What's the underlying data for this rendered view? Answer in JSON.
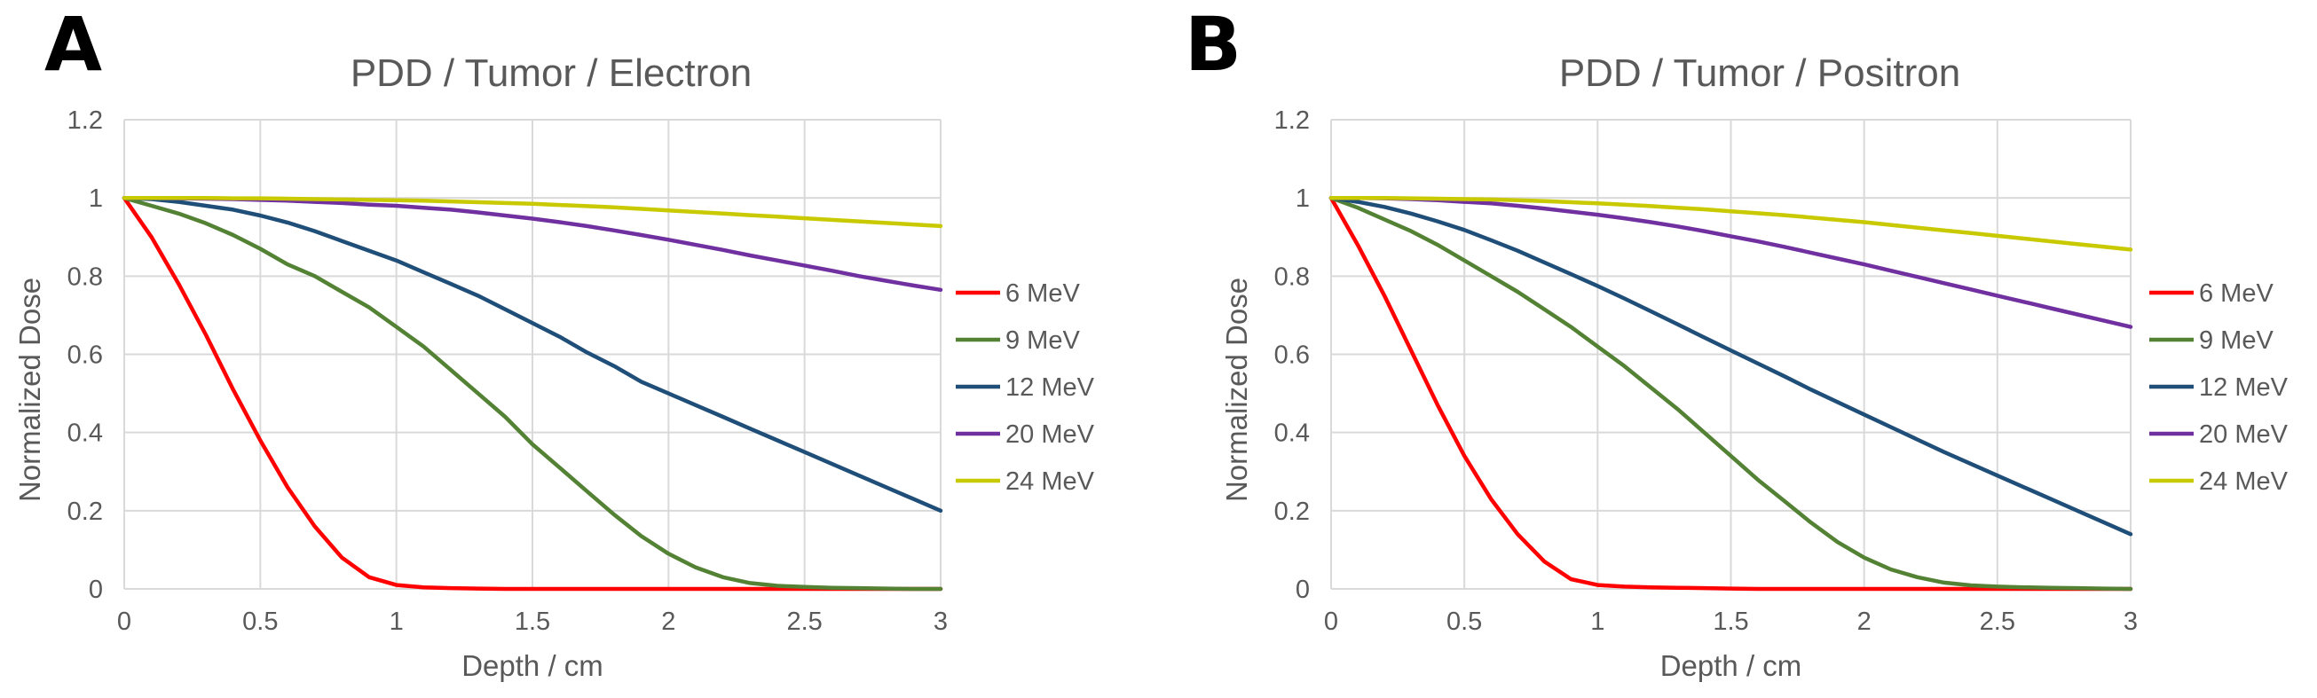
{
  "colors": {
    "6 MeV": "#ff0000",
    "9 MeV": "#548235",
    "12 MeV": "#1f4e79",
    "20 MeV": "#7030a0",
    "24 MeV": "#c9c900"
  },
  "chart_data": [
    {
      "panel_label": "A",
      "type": "line",
      "title": "PDD / Tumor / Electron",
      "xlabel": "Depth / cm",
      "ylabel": "Normalized Dose",
      "xlim": [
        0,
        3
      ],
      "ylim": [
        0,
        1.2
      ],
      "x_ticks": [
        "0",
        "0.5",
        "1",
        "1.5",
        "2",
        "2.5",
        "3"
      ],
      "y_ticks": [
        "0",
        "0.2",
        "0.4",
        "0.6",
        "0.8",
        "1",
        "1.2"
      ],
      "x": [
        0,
        0.1,
        0.2,
        0.3,
        0.4,
        0.5,
        0.6,
        0.7,
        0.8,
        0.9,
        1.0,
        1.1,
        1.2,
        1.3,
        1.4,
        1.5,
        1.6,
        1.7,
        1.8,
        1.9,
        2.0,
        2.1,
        2.2,
        2.3,
        2.4,
        2.5,
        2.6,
        2.7,
        2.8,
        2.9,
        3.0
      ],
      "series": [
        {
          "name": "6 MeV",
          "values": [
            1.0,
            0.9,
            0.78,
            0.65,
            0.51,
            0.38,
            0.26,
            0.16,
            0.08,
            0.03,
            0.01,
            0.004,
            0.002,
            0.001,
            0.0,
            0.0,
            0.0,
            0.0,
            0.0,
            0.0,
            0.0,
            0.0,
            0.0,
            0.0,
            0.0,
            0.0,
            0.0,
            0.0,
            0.0,
            0.0,
            0.0
          ]
        },
        {
          "name": "9 MeV",
          "values": [
            1.0,
            0.98,
            0.96,
            0.935,
            0.905,
            0.87,
            0.83,
            0.8,
            0.76,
            0.72,
            0.67,
            0.62,
            0.56,
            0.5,
            0.44,
            0.37,
            0.31,
            0.25,
            0.19,
            0.135,
            0.09,
            0.055,
            0.03,
            0.015,
            0.008,
            0.005,
            0.003,
            0.002,
            0.001,
            0.0,
            0.0
          ]
        },
        {
          "name": "12 MeV",
          "values": [
            1.0,
            0.997,
            0.99,
            0.98,
            0.97,
            0.955,
            0.937,
            0.915,
            0.89,
            0.865,
            0.84,
            0.81,
            0.78,
            0.75,
            0.715,
            0.68,
            0.645,
            0.605,
            0.57,
            0.53,
            0.5,
            0.47,
            0.44,
            0.41,
            0.38,
            0.35,
            0.32,
            0.29,
            0.26,
            0.23,
            0.2
          ]
        },
        {
          "name": "20 MeV",
          "values": [
            1.0,
            1.0,
            0.999,
            0.998,
            0.997,
            0.995,
            0.993,
            0.99,
            0.987,
            0.983,
            0.98,
            0.975,
            0.97,
            0.963,
            0.955,
            0.947,
            0.938,
            0.928,
            0.917,
            0.905,
            0.893,
            0.88,
            0.867,
            0.853,
            0.84,
            0.827,
            0.814,
            0.8,
            0.788,
            0.776,
            0.765
          ]
        },
        {
          "name": "24 MeV",
          "values": [
            1.0,
            1.0,
            1.0,
            1.0,
            0.999,
            0.999,
            0.998,
            0.997,
            0.996,
            0.995,
            0.994,
            0.993,
            0.991,
            0.989,
            0.987,
            0.985,
            0.982,
            0.979,
            0.976,
            0.972,
            0.968,
            0.964,
            0.96,
            0.956,
            0.952,
            0.948,
            0.944,
            0.94,
            0.936,
            0.932,
            0.928
          ]
        }
      ],
      "legend": [
        "6 MeV",
        "9 MeV",
        "12 MeV",
        "20 MeV",
        "24 MeV"
      ],
      "legend_position": "right"
    },
    {
      "panel_label": "B",
      "type": "line",
      "title": "PDD / Tumor / Positron",
      "xlabel": "Depth / cm",
      "ylabel": "Normalized Dose",
      "xlim": [
        0,
        3
      ],
      "ylim": [
        0,
        1.2
      ],
      "x_ticks": [
        "0",
        "0.5",
        "1",
        "1.5",
        "2",
        "2.5",
        "3"
      ],
      "y_ticks": [
        "0",
        "0.2",
        "0.4",
        "0.6",
        "0.8",
        "1",
        "1.2"
      ],
      "x": [
        0,
        0.1,
        0.2,
        0.3,
        0.4,
        0.5,
        0.6,
        0.7,
        0.8,
        0.9,
        1.0,
        1.1,
        1.2,
        1.3,
        1.4,
        1.5,
        1.6,
        1.7,
        1.8,
        1.9,
        2.0,
        2.1,
        2.2,
        2.3,
        2.4,
        2.5,
        2.6,
        2.7,
        2.8,
        2.9,
        3.0
      ],
      "series": [
        {
          "name": "6 MeV",
          "values": [
            1.0,
            0.88,
            0.75,
            0.61,
            0.47,
            0.34,
            0.23,
            0.14,
            0.07,
            0.025,
            0.01,
            0.006,
            0.004,
            0.003,
            0.002,
            0.001,
            0.0,
            0.0,
            0.0,
            0.0,
            0.0,
            0.0,
            0.0,
            0.0,
            0.0,
            0.0,
            0.0,
            0.0,
            0.0,
            0.0,
            0.0
          ]
        },
        {
          "name": "9 MeV",
          "values": [
            1.0,
            0.975,
            0.945,
            0.915,
            0.88,
            0.84,
            0.8,
            0.76,
            0.715,
            0.67,
            0.62,
            0.57,
            0.515,
            0.46,
            0.4,
            0.34,
            0.28,
            0.225,
            0.17,
            0.12,
            0.08,
            0.05,
            0.03,
            0.016,
            0.009,
            0.006,
            0.004,
            0.003,
            0.002,
            0.001,
            0.0
          ]
        },
        {
          "name": "12 MeV",
          "values": [
            1.0,
            0.99,
            0.977,
            0.96,
            0.94,
            0.918,
            0.892,
            0.865,
            0.835,
            0.805,
            0.775,
            0.743,
            0.71,
            0.677,
            0.643,
            0.61,
            0.577,
            0.544,
            0.51,
            0.478,
            0.446,
            0.414,
            0.382,
            0.35,
            0.32,
            0.29,
            0.26,
            0.23,
            0.2,
            0.17,
            0.14
          ]
        },
        {
          "name": "20 MeV",
          "values": [
            1.0,
            1.0,
            0.999,
            0.997,
            0.994,
            0.99,
            0.986,
            0.98,
            0.973,
            0.965,
            0.957,
            0.948,
            0.938,
            0.927,
            0.915,
            0.902,
            0.889,
            0.875,
            0.86,
            0.845,
            0.83,
            0.814,
            0.798,
            0.782,
            0.766,
            0.75,
            0.734,
            0.718,
            0.702,
            0.686,
            0.67
          ]
        },
        {
          "name": "24 MeV",
          "values": [
            1.0,
            1.0,
            1.0,
            0.999,
            0.998,
            0.997,
            0.996,
            0.994,
            0.992,
            0.989,
            0.986,
            0.983,
            0.979,
            0.975,
            0.971,
            0.966,
            0.961,
            0.956,
            0.95,
            0.944,
            0.938,
            0.931,
            0.924,
            0.917,
            0.91,
            0.903,
            0.896,
            0.889,
            0.882,
            0.875,
            0.868
          ]
        }
      ],
      "legend": [
        "6 MeV",
        "9 MeV",
        "12 MeV",
        "20 MeV",
        "24 MeV"
      ],
      "legend_position": "right"
    }
  ]
}
